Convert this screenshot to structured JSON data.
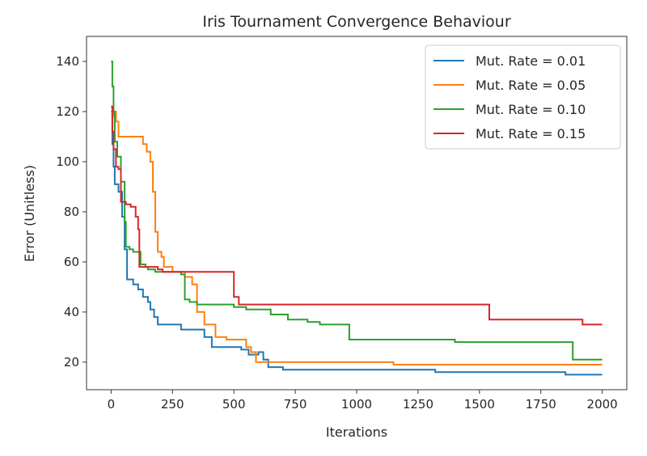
{
  "chart_data": {
    "type": "line",
    "title": "Iris Tournament Convergence Behaviour",
    "xlabel": "Iterations",
    "ylabel": "Error (Unitless)",
    "xlim": [
      -100,
      2100
    ],
    "ylim": [
      9,
      150
    ],
    "xticks": [
      0,
      250,
      500,
      750,
      1000,
      1250,
      1500,
      1750,
      2000
    ],
    "yticks": [
      20,
      40,
      60,
      80,
      100,
      120,
      140
    ],
    "grid": false,
    "legend": "top-right",
    "step": true,
    "series": [
      {
        "name": "Mut. Rate = 0.01",
        "color": "#1f77b4",
        "x": [
          0,
          5,
          10,
          15,
          30,
          45,
          55,
          65,
          90,
          110,
          130,
          150,
          160,
          175,
          190,
          250,
          285,
          360,
          380,
          410,
          500,
          530,
          560,
          600,
          620,
          640,
          700,
          750,
          1000,
          1320,
          1500,
          1750,
          1850,
          2000
        ],
        "y": [
          120,
          107,
          98,
          91,
          88,
          78,
          65,
          53,
          51,
          49,
          46,
          44,
          41,
          38,
          35,
          35,
          33,
          33,
          30,
          26,
          26,
          25,
          23,
          24,
          21,
          18,
          17,
          17,
          17,
          16,
          16,
          16,
          15,
          15
        ]
      },
      {
        "name": "Mut. Rate = 0.05",
        "color": "#ff7f0e",
        "x": [
          0,
          5,
          10,
          20,
          30,
          60,
          100,
          130,
          145,
          160,
          170,
          180,
          190,
          205,
          215,
          250,
          300,
          330,
          350,
          380,
          425,
          470,
          550,
          570,
          590,
          620,
          700,
          750,
          1000,
          1150,
          1250,
          1500,
          1700,
          2000
        ],
        "y": [
          122,
          118,
          120,
          116,
          110,
          110,
          110,
          107,
          104,
          100,
          88,
          72,
          64,
          62,
          58,
          56,
          54,
          51,
          40,
          35,
          30,
          29,
          26,
          24,
          20,
          20,
          20,
          20,
          20,
          19,
          19,
          19,
          19,
          19
        ]
      },
      {
        "name": "Mut. Rate = 0.10",
        "color": "#2ca02c",
        "x": [
          0,
          5,
          10,
          15,
          25,
          40,
          55,
          60,
          75,
          90,
          120,
          140,
          150,
          180,
          210,
          285,
          300,
          320,
          350,
          490,
          500,
          550,
          650,
          720,
          800,
          850,
          970,
          1000,
          1400,
          1500,
          1750,
          1860,
          1880,
          2000
        ],
        "y": [
          140,
          130,
          120,
          108,
          102,
          92,
          76,
          66,
          65,
          64,
          59,
          58,
          57,
          56,
          56,
          55,
          45,
          44,
          43,
          43,
          42,
          41,
          39,
          37,
          36,
          35,
          29,
          29,
          28,
          28,
          28,
          28,
          21,
          21
        ]
      },
      {
        "name": "Mut. Rate = 0.15",
        "color": "#d62728",
        "x": [
          0,
          5,
          10,
          20,
          30,
          40,
          60,
          80,
          100,
          110,
          115,
          150,
          190,
          210,
          250,
          300,
          400,
          490,
          500,
          520,
          750,
          1000,
          1250,
          1500,
          1540,
          1750,
          1900,
          1920,
          2000
        ],
        "y": [
          122,
          112,
          105,
          98,
          97,
          84,
          83,
          82,
          78,
          73,
          58,
          58,
          57,
          56,
          56,
          56,
          56,
          56,
          46,
          43,
          43,
          43,
          43,
          43,
          37,
          37,
          37,
          35,
          35
        ]
      }
    ]
  }
}
